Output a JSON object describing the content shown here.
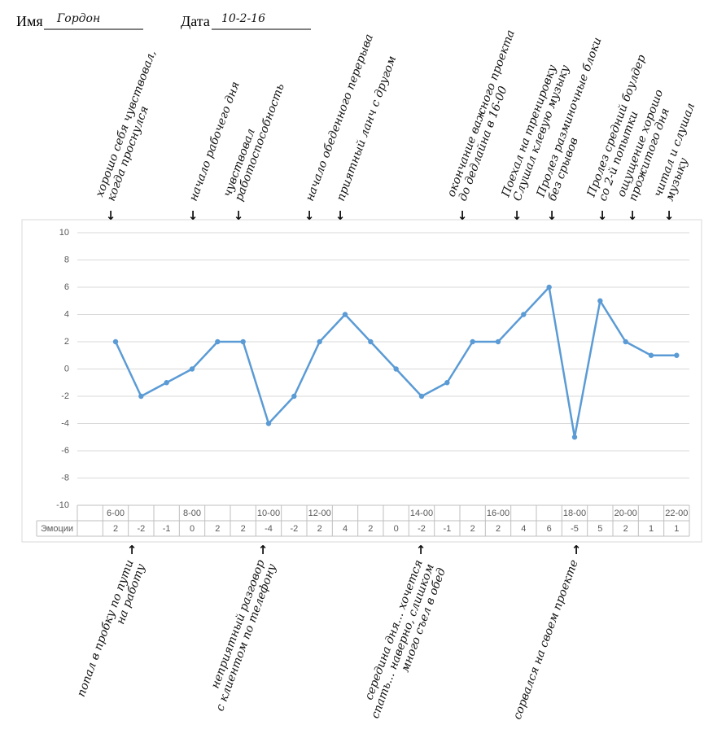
{
  "header": {
    "name_label": "Имя",
    "name": "Гордон",
    "date_label": "Дата",
    "date": "10-2-16"
  },
  "chart_data": {
    "type": "line",
    "categories": [
      null,
      "6-00",
      null,
      null,
      "8-00",
      null,
      null,
      "10-00",
      null,
      "12-00",
      null,
      null,
      null,
      "14-00",
      null,
      null,
      "16-00",
      null,
      null,
      "18-00",
      null,
      "20-00",
      null,
      "22-00"
    ],
    "series": [
      {
        "name": "Эмоции",
        "color": "#5b9bd5",
        "values": [
          null,
          2,
          -2,
          -1,
          0,
          2,
          2,
          -4,
          -2,
          2,
          4,
          2,
          0,
          -2,
          -1,
          2,
          2,
          4,
          6,
          -5,
          5,
          2,
          1,
          1
        ]
      }
    ],
    "ylim": [
      -10,
      10
    ],
    "yticks": [
      -10,
      -8,
      -6,
      -4,
      -2,
      0,
      2,
      4,
      6,
      8,
      10
    ],
    "grid": true,
    "data_table": true
  },
  "annotations_top": [
    {
      "lines": [
        "хорошо себя чувствовал,",
        "когда проснулся"
      ]
    },
    {
      "lines": [
        "начало рабочего дня"
      ]
    },
    {
      "lines": [
        "чувствовал",
        "работоспособность"
      ]
    },
    {
      "lines": [
        "начало обеденного перерыва"
      ]
    },
    {
      "lines": [
        "приятный ланч с другом"
      ]
    },
    {
      "lines": [
        "окончание важного проекта",
        "до дедлайна в 16-00"
      ]
    },
    {
      "lines": [
        "Поехал на тренировку",
        "Слушал клевую музыку"
      ]
    },
    {
      "lines": [
        "Пролез разминочные блоки",
        "без срывов"
      ]
    },
    {
      "lines": [
        "Пролез средний боулдер",
        "со 2-й попытки"
      ]
    },
    {
      "lines": [
        "ощущение хорошо",
        "прожитого дня"
      ]
    },
    {
      "lines": [
        "читал и слушал",
        "музыку"
      ]
    }
  ],
  "annotations_bottom": [
    {
      "lines": [
        "попал в пробку по пути",
        "на работу"
      ]
    },
    {
      "lines": [
        "неприятный разговор",
        "с клиентом по телефону"
      ]
    },
    {
      "lines": [
        "середина дня... хочется",
        "спать... наверно, слишком",
        "много съел в обед"
      ]
    },
    {
      "lines": [
        "сорвался на своем проекте"
      ]
    }
  ]
}
